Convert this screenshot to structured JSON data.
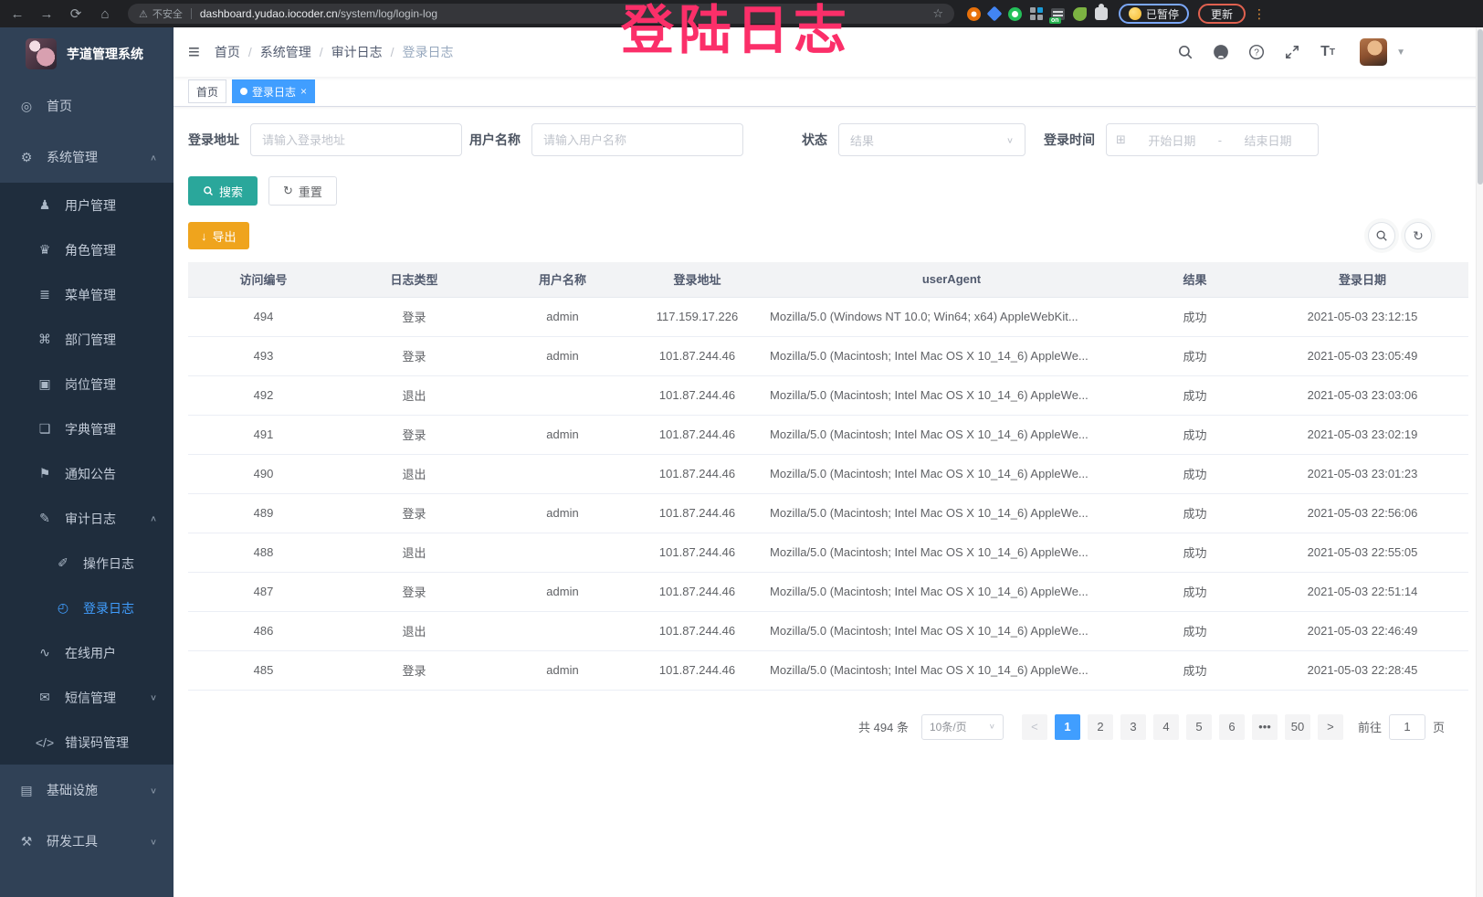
{
  "colors": {
    "accent": "#409eff",
    "search_button": "#2aa79b",
    "export_button": "#efa41d",
    "overlay_text": "#fb2f69",
    "sidebar_bg": "#304156",
    "submenu_bg": "#1f2d3d"
  },
  "browser": {
    "security_label": "不安全",
    "url_host": "dashboard.yudao.iocoder.cn",
    "url_path": "/system/log/login-log",
    "paused_label": "已暂停",
    "update_label": "更新",
    "ext_on_badge": "on"
  },
  "overlay": {
    "text": "登陆日志"
  },
  "sidebar": {
    "title": "芋道管理系统",
    "items": [
      {
        "label": "首页",
        "icon": "◎",
        "icon_name": "home-icon",
        "level": 1
      },
      {
        "label": "系统管理",
        "icon": "⚙",
        "icon_name": "gear-icon",
        "level": 1,
        "arrow": "∧"
      },
      {
        "label": "用户管理",
        "icon": "♟",
        "icon_name": "user-icon",
        "level": 2
      },
      {
        "label": "角色管理",
        "icon": "♛",
        "icon_name": "role-icon",
        "level": 2
      },
      {
        "label": "菜单管理",
        "icon": "≣",
        "icon_name": "menu-list-icon",
        "level": 2
      },
      {
        "label": "部门管理",
        "icon": "⌘",
        "icon_name": "department-tree-icon",
        "level": 2
      },
      {
        "label": "岗位管理",
        "icon": "▣",
        "icon_name": "post-icon",
        "level": 2
      },
      {
        "label": "字典管理",
        "icon": "❏",
        "icon_name": "dict-icon",
        "level": 2
      },
      {
        "label": "通知公告",
        "icon": "⚑",
        "icon_name": "notice-icon",
        "level": 2
      },
      {
        "label": "审计日志",
        "icon": "✎",
        "icon_name": "audit-log-icon",
        "level": 2,
        "arrow": "∧"
      },
      {
        "label": "操作日志",
        "icon": "✐",
        "icon_name": "operate-log-icon",
        "level": 3
      },
      {
        "label": "登录日志",
        "icon": "◴",
        "icon_name": "login-log-icon",
        "level": 3,
        "active": true
      },
      {
        "label": "在线用户",
        "icon": "∿",
        "icon_name": "online-user-icon",
        "level": 2
      },
      {
        "label": "短信管理",
        "icon": "✉",
        "icon_name": "sms-icon",
        "level": 2,
        "arrow": "∨"
      },
      {
        "label": "错误码管理",
        "icon": "</>",
        "icon_name": "error-code-icon",
        "level": 2
      },
      {
        "label": "基础设施",
        "icon": "▤",
        "icon_name": "infrastructure-icon",
        "level": 1,
        "arrow": "∨"
      },
      {
        "label": "研发工具",
        "icon": "⚒",
        "icon_name": "dev-tools-icon",
        "level": 1,
        "arrow": "∨"
      }
    ]
  },
  "topnav": {
    "hamburger": "≡",
    "breadcrumb": [
      "首页",
      "系统管理",
      "审计日志",
      "登录日志"
    ]
  },
  "tags": [
    {
      "label": "首页"
    },
    {
      "label": "登录日志",
      "active": true
    }
  ],
  "filters": {
    "address": {
      "label": "登录地址",
      "placeholder": "请输入登录地址"
    },
    "username": {
      "label": "用户名称",
      "placeholder": "请输入用户名称"
    },
    "status": {
      "label": "状态",
      "placeholder": "结果",
      "arrow": "∨"
    },
    "login_time": {
      "label": "登录时间",
      "calendar_icon": "⊞",
      "start_placeholder": "开始日期",
      "separator": "-",
      "end_placeholder": "结束日期"
    }
  },
  "actions": {
    "search": "搜索",
    "reset": "重置",
    "reset_icon": "↻",
    "export": "导出",
    "export_icon": "↓",
    "refresh_icon": "↻"
  },
  "table": {
    "columns": [
      "访问编号",
      "日志类型",
      "用户名称",
      "登录地址",
      "userAgent",
      "结果",
      "登录日期"
    ],
    "rows": [
      {
        "id": "494",
        "type": "登录",
        "user": "admin",
        "ip": "117.159.17.226",
        "ua": "Mozilla/5.0 (Windows NT 10.0; Win64; x64) AppleWebKit...",
        "result": "成功",
        "date": "2021-05-03 23:12:15"
      },
      {
        "id": "493",
        "type": "登录",
        "user": "admin",
        "ip": "101.87.244.46",
        "ua": "Mozilla/5.0 (Macintosh; Intel Mac OS X 10_14_6) AppleWe...",
        "result": "成功",
        "date": "2021-05-03 23:05:49"
      },
      {
        "id": "492",
        "type": "退出",
        "user": "",
        "ip": "101.87.244.46",
        "ua": "Mozilla/5.0 (Macintosh; Intel Mac OS X 10_14_6) AppleWe...",
        "result": "成功",
        "date": "2021-05-03 23:03:06"
      },
      {
        "id": "491",
        "type": "登录",
        "user": "admin",
        "ip": "101.87.244.46",
        "ua": "Mozilla/5.0 (Macintosh; Intel Mac OS X 10_14_6) AppleWe...",
        "result": "成功",
        "date": "2021-05-03 23:02:19"
      },
      {
        "id": "490",
        "type": "退出",
        "user": "",
        "ip": "101.87.244.46",
        "ua": "Mozilla/5.0 (Macintosh; Intel Mac OS X 10_14_6) AppleWe...",
        "result": "成功",
        "date": "2021-05-03 23:01:23"
      },
      {
        "id": "489",
        "type": "登录",
        "user": "admin",
        "ip": "101.87.244.46",
        "ua": "Mozilla/5.0 (Macintosh; Intel Mac OS X 10_14_6) AppleWe...",
        "result": "成功",
        "date": "2021-05-03 22:56:06"
      },
      {
        "id": "488",
        "type": "退出",
        "user": "",
        "ip": "101.87.244.46",
        "ua": "Mozilla/5.0 (Macintosh; Intel Mac OS X 10_14_6) AppleWe...",
        "result": "成功",
        "date": "2021-05-03 22:55:05"
      },
      {
        "id": "487",
        "type": "登录",
        "user": "admin",
        "ip": "101.87.244.46",
        "ua": "Mozilla/5.0 (Macintosh; Intel Mac OS X 10_14_6) AppleWe...",
        "result": "成功",
        "date": "2021-05-03 22:51:14"
      },
      {
        "id": "486",
        "type": "退出",
        "user": "",
        "ip": "101.87.244.46",
        "ua": "Mozilla/5.0 (Macintosh; Intel Mac OS X 10_14_6) AppleWe...",
        "result": "成功",
        "date": "2021-05-03 22:46:49"
      },
      {
        "id": "485",
        "type": "登录",
        "user": "admin",
        "ip": "101.87.244.46",
        "ua": "Mozilla/5.0 (Macintosh; Intel Mac OS X 10_14_6) AppleWe...",
        "result": "成功",
        "date": "2021-05-03 22:28:45"
      }
    ]
  },
  "pagination": {
    "total": "共 494 条",
    "page_size": "10条/页",
    "size_arrow": "∨",
    "prev": "<",
    "next": ">",
    "pages": [
      {
        "label": "1",
        "active": true
      },
      {
        "label": "2"
      },
      {
        "label": "3"
      },
      {
        "label": "4"
      },
      {
        "label": "5"
      },
      {
        "label": "6"
      },
      {
        "label": "•••"
      },
      {
        "label": "50"
      }
    ],
    "goto_prefix": "前往",
    "goto_value": "1",
    "goto_suffix": "页"
  }
}
